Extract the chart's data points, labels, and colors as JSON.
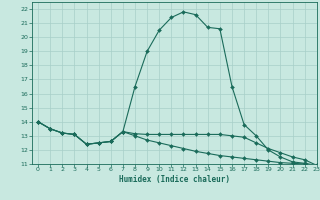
{
  "xlabel": "Humidex (Indice chaleur)",
  "ylabel": "",
  "bg_color": "#c8e8e0",
  "line_color": "#1a6b5a",
  "grid_color": "#a8cfc8",
  "xlim": [
    -0.5,
    23
  ],
  "ylim": [
    11,
    22.5
  ],
  "xticks": [
    0,
    1,
    2,
    3,
    4,
    5,
    6,
    7,
    8,
    9,
    10,
    11,
    12,
    13,
    14,
    15,
    16,
    17,
    18,
    19,
    20,
    21,
    22,
    23
  ],
  "yticks": [
    11,
    12,
    13,
    14,
    15,
    16,
    17,
    18,
    19,
    20,
    21,
    22
  ],
  "curve1_x": [
    0,
    1,
    2,
    3,
    4,
    5,
    6,
    7,
    8,
    9,
    10,
    11,
    12,
    13,
    14,
    15,
    16,
    17,
    18,
    19,
    20,
    21,
    22,
    23
  ],
  "curve1_y": [
    14.0,
    13.5,
    13.2,
    13.1,
    12.4,
    12.5,
    12.6,
    13.3,
    16.5,
    19.0,
    20.5,
    21.4,
    21.8,
    21.6,
    20.7,
    20.6,
    16.5,
    13.8,
    13.0,
    12.0,
    11.5,
    11.15,
    11.05,
    10.9
  ],
  "curve2_x": [
    0,
    1,
    2,
    3,
    4,
    5,
    6,
    7,
    8,
    9,
    10,
    11,
    12,
    13,
    14,
    15,
    16,
    17,
    18,
    19,
    20,
    21,
    22,
    23
  ],
  "curve2_y": [
    14.0,
    13.5,
    13.2,
    13.1,
    12.4,
    12.5,
    12.6,
    13.3,
    13.15,
    13.1,
    13.1,
    13.1,
    13.1,
    13.1,
    13.1,
    13.1,
    13.0,
    12.9,
    12.5,
    12.1,
    11.8,
    11.5,
    11.3,
    10.9
  ],
  "curve3_x": [
    0,
    1,
    2,
    3,
    4,
    5,
    6,
    7,
    8,
    9,
    10,
    11,
    12,
    13,
    14,
    15,
    16,
    17,
    18,
    19,
    20,
    21,
    22,
    23
  ],
  "curve3_y": [
    14.0,
    13.5,
    13.2,
    13.1,
    12.4,
    12.5,
    12.6,
    13.3,
    13.0,
    12.7,
    12.5,
    12.3,
    12.1,
    11.9,
    11.75,
    11.6,
    11.5,
    11.4,
    11.3,
    11.2,
    11.1,
    11.05,
    11.0,
    10.9
  ]
}
